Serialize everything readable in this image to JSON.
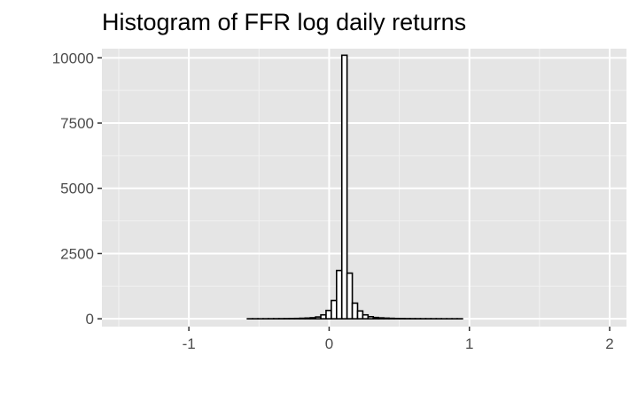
{
  "chart_data": {
    "type": "bar",
    "title": "Histogram of FFR log daily returns",
    "xlabel": "",
    "ylabel": "",
    "xlim": [
      -1.62,
      2.12
    ],
    "ylim": [
      -300,
      10350
    ],
    "x_ticks": [
      -1,
      0,
      1,
      2
    ],
    "y_ticks": [
      0,
      2500,
      5000,
      7500,
      10000
    ],
    "y_tick_labels": [
      "0",
      "2500",
      "5000",
      "7500",
      "10000"
    ],
    "x_tick_labels": [
      "-1",
      "0",
      "1",
      "2"
    ],
    "grid": true,
    "bin_width": 0.0374,
    "bin_start": -1.63,
    "series": [
      {
        "values": [
          0,
          0,
          0,
          0,
          0,
          0,
          0,
          0,
          0,
          0,
          0,
          0,
          0,
          0,
          0,
          0,
          0,
          0,
          0,
          0,
          0,
          0,
          0,
          0,
          0,
          0,
          0,
          0,
          1,
          1,
          1,
          2,
          3,
          4,
          5,
          7,
          10,
          14,
          20,
          28,
          40,
          70,
          150,
          320,
          700,
          1850,
          10100,
          1750,
          600,
          300,
          150,
          80,
          50,
          35,
          25,
          18,
          12,
          9,
          6,
          5,
          4,
          3,
          3,
          2,
          2,
          1,
          1,
          1,
          1,
          0,
          0,
          0,
          0,
          0,
          0,
          0,
          0,
          0,
          0,
          0,
          0,
          0,
          0,
          0,
          0,
          0,
          0,
          0,
          0,
          0,
          0,
          0,
          0,
          0,
          0,
          0,
          0,
          0,
          0,
          0
        ]
      }
    ],
    "colors": {
      "panel_background": "#e5e5e5",
      "grid_major": "#ffffff",
      "grid_minor": "#f2f2f2",
      "bar_fill": "#ffffff",
      "bar_stroke": "#000000",
      "tick_text": "#4d4d4d",
      "tick_mark": "#333333"
    }
  }
}
